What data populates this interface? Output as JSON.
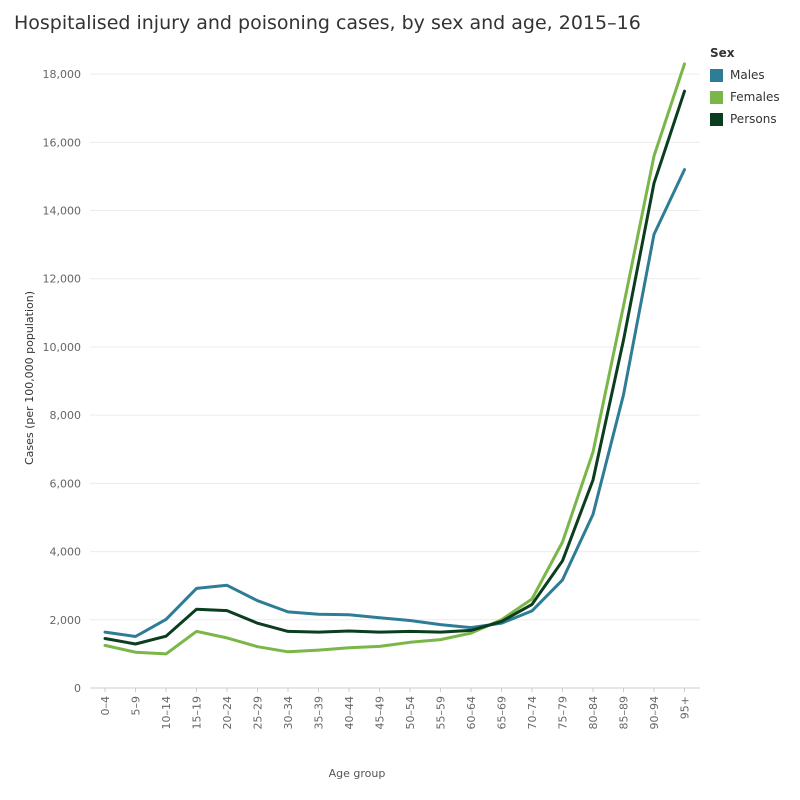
{
  "chart_data": {
    "type": "line",
    "title": "Hospitalised injury and poisoning cases, by sex and age, 2015–16",
    "xlabel": "Age group",
    "ylabel": "Cases (per 100,000 population)",
    "categories": [
      "0–4",
      "5–9",
      "10–14",
      "15–19",
      "20–24",
      "25–29",
      "30–34",
      "35–39",
      "40–44",
      "45–49",
      "50–54",
      "55–59",
      "60–64",
      "65–69",
      "70–74",
      "75–79",
      "80–84",
      "85–89",
      "90–94",
      "95+"
    ],
    "ylim": [
      0,
      19000
    ],
    "yticks": [
      0,
      2000,
      4000,
      6000,
      8000,
      10000,
      12000,
      14000,
      16000,
      18000
    ],
    "ytick_labels": [
      "0",
      "2,000",
      "4,000",
      "6,000",
      "8,000",
      "10,000",
      "12,000",
      "14,000",
      "16,000",
      "18,000"
    ],
    "grid": true,
    "legend": {
      "title": "Sex",
      "position": "top-right"
    },
    "series": [
      {
        "name": "Males",
        "color": "#2e7d95",
        "values": [
          1640,
          1510,
          2010,
          2920,
          3010,
          2560,
          2230,
          2160,
          2150,
          2060,
          1980,
          1860,
          1770,
          1900,
          2260,
          3170,
          5090,
          8600,
          13300,
          15200
        ]
      },
      {
        "name": "Females",
        "color": "#7ab648",
        "values": [
          1250,
          1050,
          1000,
          1660,
          1470,
          1210,
          1060,
          1110,
          1180,
          1220,
          1340,
          1420,
          1610,
          2000,
          2610,
          4280,
          6920,
          11200,
          15600,
          18300
        ]
      },
      {
        "name": "Persons",
        "color": "#0b3d1f",
        "values": [
          1450,
          1290,
          1520,
          2310,
          2270,
          1900,
          1660,
          1640,
          1670,
          1640,
          1660,
          1640,
          1690,
          1950,
          2450,
          3730,
          6100,
          10200,
          14800,
          17500
        ]
      }
    ]
  }
}
